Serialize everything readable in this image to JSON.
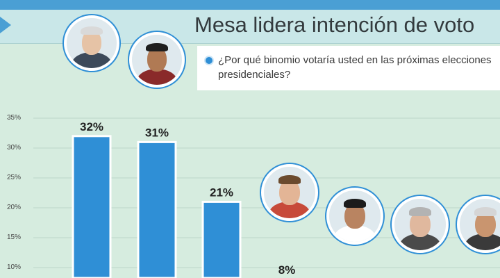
{
  "title": "Mesa lidera intención de voto",
  "question": "¿Por qué binomio votaría usted en las próximas elecciones presidenciales?",
  "colors": {
    "bar": "#2f8fd6",
    "bar_edge": "#ffffff",
    "background": "#d6ecdf"
  },
  "chart_data": {
    "type": "bar",
    "categories": [
      "",
      "",
      "",
      ""
    ],
    "values": [
      32,
      31,
      21,
      8
    ],
    "data_labels": [
      "32%",
      "31%",
      "21%",
      "8%"
    ],
    "yticks": [
      "35%",
      "30%",
      "25%",
      "20%",
      "15%",
      "10%"
    ],
    "ytick_values": [
      35,
      30,
      25,
      20,
      15,
      10
    ],
    "grid": true,
    "legend": "none"
  },
  "avatars": [
    {
      "icon": "candidate-portrait-icon"
    },
    {
      "icon": "candidate-portrait-icon"
    },
    {
      "icon": "candidate-portrait-icon"
    },
    {
      "icon": "candidate-portrait-icon"
    },
    {
      "icon": "candidate-portrait-icon"
    },
    {
      "icon": "candidate-portrait-icon"
    }
  ]
}
